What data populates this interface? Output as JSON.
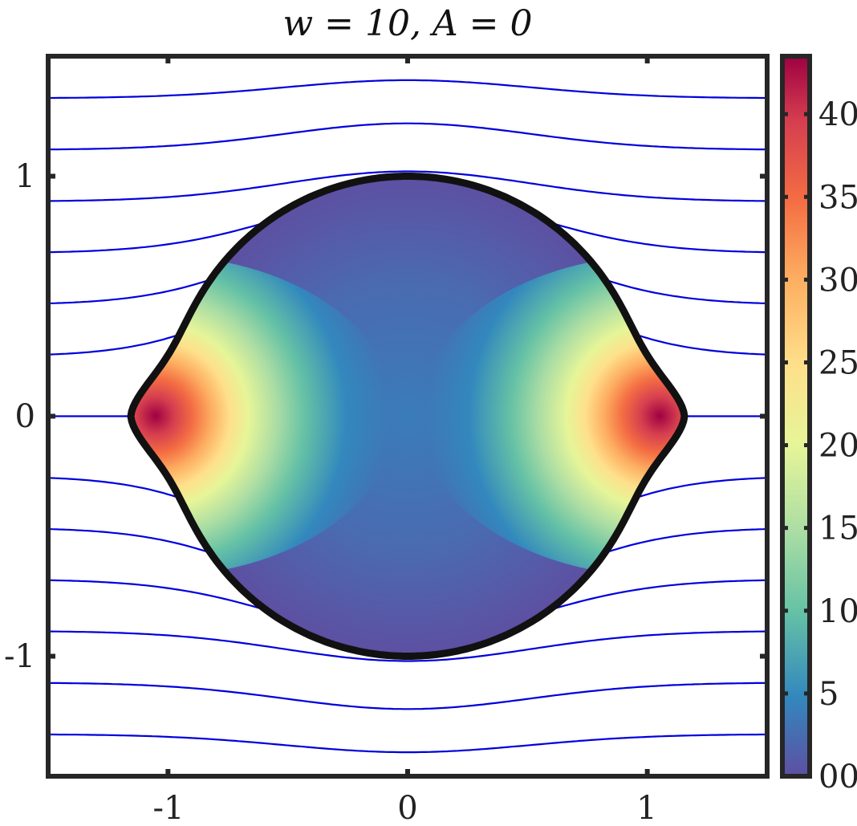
{
  "chart_data": {
    "type": "contour",
    "title": "w = 10, A = 0",
    "xlim": [
      -1.5,
      1.5
    ],
    "ylim": [
      -1.5,
      1.5
    ],
    "x_ticks": [
      -1,
      0,
      1
    ],
    "x_tick_labels": [
      "-1",
      "0",
      "1"
    ],
    "y_ticks": [
      -1,
      0,
      1
    ],
    "y_tick_labels": [
      "-1",
      "0",
      "1"
    ],
    "colorbar": {
      "range": [
        0,
        43.5
      ],
      "ticks": [
        0,
        5,
        10,
        15,
        20,
        25,
        30,
        35,
        40
      ],
      "tick_labels": [
        "00",
        "5",
        "10",
        "15",
        "20",
        "25",
        "30",
        "35",
        "40"
      ],
      "colormap": [
        "#5e4fa2",
        "#3288bd",
        "#66c2a5",
        "#abdda4",
        "#e6f598",
        "#fee08b",
        "#fdae61",
        "#f46d43",
        "#d53e4f",
        "#9e0142"
      ]
    },
    "streamline_color": "#0000dd",
    "streamline_far_y": [
      -1.325,
      -1.11,
      -0.895,
      -0.68,
      -0.465,
      -0.25,
      0.25,
      0.465,
      0.68,
      0.895,
      1.11,
      1.325
    ],
    "streamline_near_y": [
      -1.4,
      -1.22,
      -1.02,
      -0.93,
      -0.85,
      -0.77,
      0.77,
      0.85,
      0.93,
      1.02,
      1.22,
      1.4
    ],
    "streamline_center_y": 0,
    "drop_shape": {
      "x_tip": 1.155,
      "radius": 1.0,
      "field_peak": 43.5,
      "field_peak_x": 1.07
    }
  }
}
